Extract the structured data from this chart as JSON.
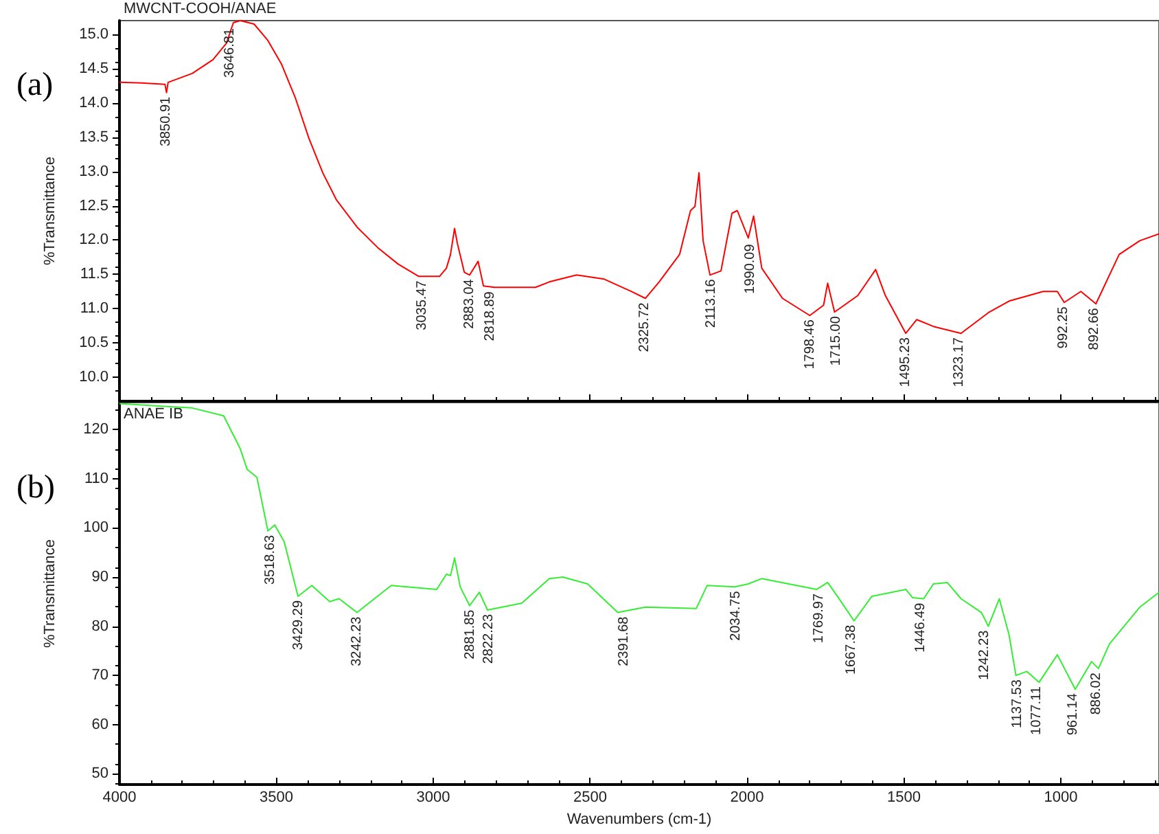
{
  "chart_data": [
    {
      "type": "line",
      "title": "MWCNT-COOH/ANAE",
      "ylabel": "%Transmittance",
      "tick_labels": "y",
      "grid": false,
      "marker": "none",
      "line_style": "solid",
      "xlim": [
        4000,
        687
      ],
      "xticks": [
        4000,
        3500,
        3000,
        2500,
        2000,
        1500,
        1000
      ],
      "ylim": [
        9.65,
        15.2
      ],
      "yticks": [
        {
          "value": 10,
          "label": "10.0"
        },
        10.5,
        {
          "value": 11,
          "label": "11.0"
        },
        11.5,
        {
          "value": 12,
          "label": "12.0"
        },
        12.5,
        {
          "value": 13,
          "label": "13.0"
        },
        13.5,
        {
          "value": 14,
          "label": "14.0"
        },
        14.5,
        {
          "value": 15,
          "label": "15.0"
        }
      ],
      "series": [
        {
          "color": "#ff0000",
          "x": [
            4000,
            3930,
            3855,
            3850,
            3845,
            3768,
            3702,
            3659,
            3637,
            3615,
            3571,
            3527,
            3484,
            3440,
            3396,
            3352,
            3309,
            3243,
            3177,
            3112,
            3046,
            2980,
            2958,
            2945,
            2932,
            2923,
            2901,
            2884,
            2857,
            2840,
            2805,
            2674,
            2630,
            2543,
            2455,
            2368,
            2324,
            2280,
            2215,
            2180,
            2166,
            2153,
            2140,
            2118,
            2083,
            2048,
            2031,
            1996,
            1979,
            1953,
            1887,
            1800,
            1756,
            1743,
            1721,
            1647,
            1590,
            1559,
            1494,
            1459,
            1406,
            1318,
            1231,
            1165,
            1056,
            1011,
            989,
            936,
            888,
            814,
            748,
            687
          ],
          "values": [
            14.3,
            14.29,
            14.27,
            14.15,
            14.3,
            14.43,
            14.63,
            14.87,
            15.17,
            15.2,
            15.15,
            14.91,
            14.57,
            14.08,
            13.48,
            12.98,
            12.59,
            12.19,
            11.89,
            11.65,
            11.47,
            11.47,
            11.59,
            11.79,
            12.17,
            11.95,
            11.53,
            11.49,
            11.69,
            11.33,
            11.31,
            11.31,
            11.39,
            11.49,
            11.43,
            11.25,
            11.15,
            11.39,
            11.79,
            12.43,
            12.49,
            12.98,
            11.99,
            11.49,
            11.55,
            12.39,
            12.43,
            12.03,
            12.35,
            11.59,
            11.15,
            10.9,
            11.05,
            11.37,
            10.95,
            11.19,
            11.57,
            11.19,
            10.64,
            10.84,
            10.74,
            10.64,
            10.94,
            11.11,
            11.25,
            11.25,
            11.09,
            11.25,
            11.07,
            11.79,
            11.99,
            12.09
          ]
        }
      ],
      "annotations": [
        "(a)",
        {
          "text": "3850.91",
          "x": 3850.91,
          "y": 14.15
        },
        {
          "text": "3646.81",
          "x": 3646.81,
          "y": 15.15
        },
        {
          "text": "3035.47",
          "x": 3035.47,
          "y": 11.47
        },
        {
          "text": "2883.04",
          "x": 2883.04,
          "y": 11.49
        },
        {
          "text": "2818.89",
          "x": 2818.89,
          "y": 11.31
        },
        {
          "text": "2325.72",
          "x": 2325.72,
          "y": 11.15
        },
        {
          "text": "2113.16",
          "x": 2113.16,
          "y": 11.49
        },
        {
          "text": "1990.09",
          "x": 1990.09,
          "y": 12.0
        },
        {
          "text": "1798.46",
          "x": 1798.46,
          "y": 10.9
        },
        {
          "text": "1715.00",
          "x": 1715.0,
          "y": 10.95
        },
        {
          "text": "1495.23",
          "x": 1495.23,
          "y": 10.64
        },
        {
          "text": "1323.17",
          "x": 1323.17,
          "y": 10.64
        },
        {
          "text": "992.25",
          "x": 992.25,
          "y": 11.09
        },
        {
          "text": "892.66",
          "x": 892.66,
          "y": 11.07
        }
      ]
    },
    {
      "type": "line",
      "title": "ANAE IB",
      "xlabel": "Wavenumbers (cm-1)",
      "ylabel": "%Transmittance",
      "grid": false,
      "marker": "none",
      "line_style": "solid",
      "xlim": [
        4000,
        687
      ],
      "xticks": [
        4000,
        3500,
        3000,
        2500,
        2000,
        1500,
        1000
      ],
      "ylim": [
        47.8,
        125.5
      ],
      "yticks": [
        50,
        60,
        70,
        80,
        90,
        100,
        110,
        120
      ],
      "series": [
        {
          "color": "#33ee33",
          "x": [
            4000,
            3768,
            3668,
            3615,
            3593,
            3562,
            3527,
            3505,
            3475,
            3431,
            3387,
            3330,
            3300,
            3243,
            3134,
            2989,
            2958,
            2945,
            2932,
            2914,
            2884,
            2853,
            2827,
            2718,
            2630,
            2587,
            2508,
            2412,
            2324,
            2162,
            2127,
            2039,
            1996,
            1953,
            1778,
            1743,
            1712,
            1659,
            1602,
            1494,
            1472,
            1437,
            1406,
            1362,
            1318,
            1253,
            1231,
            1196,
            1165,
            1143,
            1108,
            1069,
            1011,
            954,
            902,
            880,
            845,
            748,
            687
          ],
          "values": [
            125.3,
            124.4,
            122.8,
            116.1,
            111.9,
            110.3,
            99.4,
            100.6,
            97.2,
            86.1,
            88.3,
            85.0,
            85.6,
            82.8,
            88.3,
            87.5,
            90.6,
            90.3,
            93.9,
            88.0,
            84.2,
            86.9,
            83.3,
            84.7,
            89.7,
            90.0,
            88.6,
            82.8,
            83.9,
            83.6,
            88.3,
            88.0,
            88.6,
            89.7,
            87.5,
            88.9,
            86.1,
            81.1,
            86.1,
            87.5,
            85.8,
            85.6,
            88.6,
            88.9,
            85.6,
            82.8,
            80.0,
            85.6,
            78.3,
            70.0,
            70.8,
            68.6,
            74.2,
            67.2,
            72.8,
            71.4,
            76.4,
            83.9,
            86.9
          ]
        }
      ],
      "annotations": [
        "(b)",
        {
          "text": "3518.63",
          "x": 3518.63,
          "y": 99.4
        },
        {
          "text": "3429.29",
          "x": 3429.29,
          "y": 86.1
        },
        {
          "text": "3242.23",
          "x": 3242.23,
          "y": 82.8
        },
        {
          "text": "2881.85",
          "x": 2881.85,
          "y": 84.2
        },
        {
          "text": "2822.23",
          "x": 2822.23,
          "y": 83.3
        },
        {
          "text": "2391.68",
          "x": 2391.68,
          "y": 82.8
        },
        {
          "text": "2034.75",
          "x": 2034.75,
          "y": 88.0
        },
        {
          "text": "1769.97",
          "x": 1769.97,
          "y": 87.5
        },
        {
          "text": "1667.38",
          "x": 1667.38,
          "y": 81.1
        },
        {
          "text": "1446.49",
          "x": 1446.49,
          "y": 85.6
        },
        {
          "text": "1242.23",
          "x": 1242.23,
          "y": 80.0
        },
        {
          "text": "1137.53",
          "x": 1137.53,
          "y": 70.0
        },
        {
          "text": "1077.11",
          "x": 1077.11,
          "y": 68.6
        },
        {
          "text": "961.14",
          "x": 961.14,
          "y": 67.2
        },
        {
          "text": "886.02",
          "x": 886.02,
          "y": 71.4
        }
      ]
    }
  ]
}
